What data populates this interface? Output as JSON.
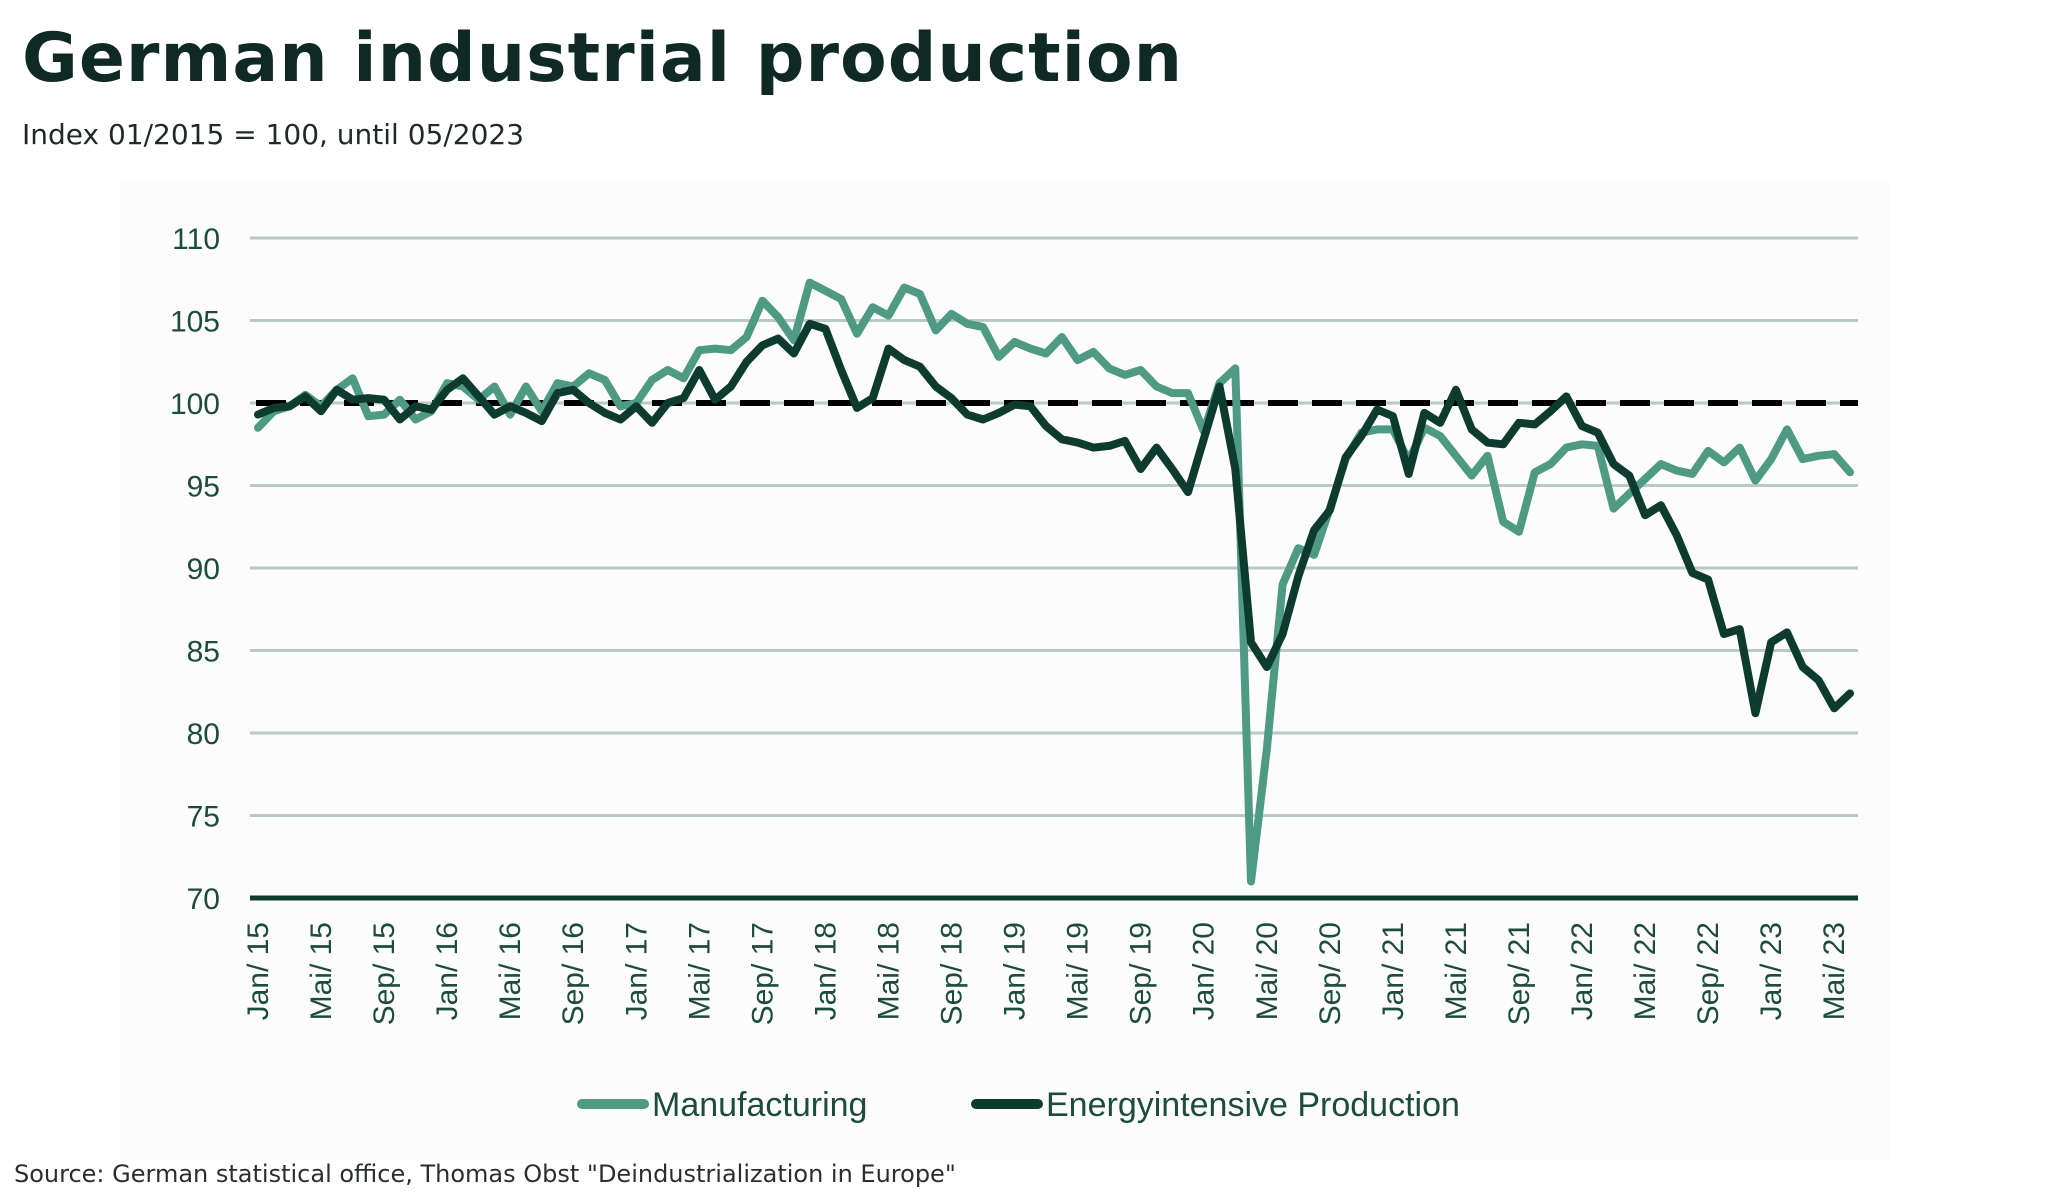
{
  "header": {
    "title": "German industrial production",
    "subtitle": "Index 01/2015 = 100, until 05/2023"
  },
  "footer": {
    "source": "Source: German statistical office, Thomas Obst \"Deindustrialization in Europe\""
  },
  "colors": {
    "manufacturing": "#4e9a83",
    "energy": "#0d3b2e",
    "gridline": "#b9c9c3",
    "reference_line": "#000000",
    "axis_line": "#0d3b2e",
    "tick_text": "#1d4b3e"
  },
  "chart_data": {
    "type": "line",
    "title": "German industrial production",
    "subtitle": "Index 01/2015 = 100, until 05/2023",
    "xlabel": "",
    "ylabel": "",
    "ylim": [
      70,
      110
    ],
    "yticks": [
      70,
      75,
      80,
      85,
      90,
      95,
      100,
      105,
      110
    ],
    "grid": true,
    "legend_placement": "bottom",
    "reference_line": 100,
    "x_start": "Jan/ 15",
    "x_end": "Jun/ 23",
    "x_tick_labels": [
      "Jan/ 15",
      "Mai/ 15",
      "Sep/ 15",
      "Jan/ 16",
      "Mai/ 16",
      "Sep/ 16",
      "Jan/ 17",
      "Mai/ 17",
      "Sep/ 17",
      "Jan/ 18",
      "Mai/ 18",
      "Sep/ 18",
      "Jan/ 19",
      "Mai/ 19",
      "Sep/ 19",
      "Jan/ 20",
      "Mai/ 20",
      "Sep/ 20",
      "Jan/ 21",
      "Mai/ 21",
      "Sep/ 21",
      "Jan/ 22",
      "Mai/ 22",
      "Sep/ 22",
      "Jan/ 23",
      "Mai/ 23"
    ],
    "series": [
      {
        "name": "Manufacturing",
        "values": [
          98.5,
          99.5,
          99.8,
          100.5,
          99.8,
          100.8,
          101.5,
          99.2,
          99.3,
          100.2,
          99.0,
          99.5,
          101.2,
          101.0,
          100.2,
          101.0,
          99.3,
          101.0,
          99.5,
          101.2,
          101.0,
          101.8,
          101.4,
          99.8,
          100.0,
          101.4,
          102.0,
          101.5,
          103.2,
          103.3,
          103.2,
          104.0,
          106.2,
          105.2,
          103.8,
          107.3,
          106.8,
          106.3,
          104.2,
          105.8,
          105.3,
          107.0,
          106.6,
          104.4,
          105.4,
          104.8,
          104.6,
          102.8,
          103.7,
          103.3,
          103.0,
          104.0,
          102.6,
          103.1,
          102.1,
          101.7,
          102.0,
          101.0,
          100.6,
          100.6,
          98.3,
          101.2,
          102.1,
          71.0,
          79.0,
          89.0,
          91.2,
          90.8,
          93.6,
          96.6,
          98.2,
          98.4,
          98.4,
          96.5,
          98.5,
          98.0,
          96.8,
          95.6,
          96.8,
          92.8,
          92.2,
          95.8,
          96.3,
          97.3,
          97.5,
          97.4,
          93.6,
          94.5,
          95.4,
          96.3,
          95.9,
          95.7,
          97.1,
          96.4,
          97.3,
          95.3,
          96.6,
          98.4,
          96.6,
          96.8,
          96.9,
          95.8
        ]
      },
      {
        "name": "Energyintensive Production",
        "values": [
          99.3,
          99.7,
          99.8,
          100.4,
          99.5,
          100.8,
          100.2,
          100.3,
          100.2,
          99.0,
          99.8,
          99.6,
          100.8,
          101.5,
          100.4,
          99.3,
          99.8,
          99.4,
          98.9,
          100.6,
          100.8,
          100.0,
          99.4,
          99.0,
          99.8,
          98.8,
          100.0,
          100.3,
          102.0,
          100.2,
          101.0,
          102.5,
          103.5,
          103.9,
          103.0,
          104.8,
          104.5,
          102.0,
          99.7,
          100.3,
          103.3,
          102.6,
          102.2,
          101.0,
          100.3,
          99.3,
          99.0,
          99.4,
          99.9,
          99.8,
          98.6,
          97.8,
          97.6,
          97.3,
          97.4,
          97.7,
          96.0,
          97.3,
          96.0,
          94.6,
          97.8,
          101.0,
          96.0,
          85.5,
          84.0,
          86.0,
          89.5,
          92.3,
          93.5,
          96.7,
          98.0,
          99.6,
          99.2,
          95.7,
          99.4,
          98.8,
          100.8,
          98.4,
          97.6,
          97.5,
          98.8,
          98.7,
          99.5,
          100.4,
          98.6,
          98.2,
          96.3,
          95.6,
          93.2,
          93.8,
          92.0,
          89.7,
          89.3,
          86.0,
          86.3,
          81.2,
          85.5,
          86.1,
          84.0,
          83.2,
          81.5,
          82.4
        ]
      }
    ]
  }
}
